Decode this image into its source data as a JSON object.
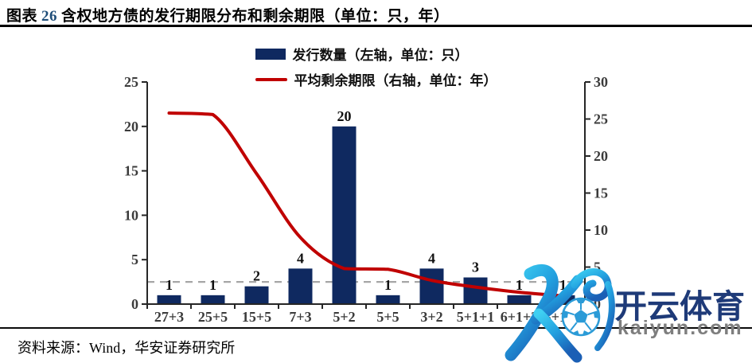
{
  "header": {
    "fig_label": "图表",
    "fig_number": "26",
    "title": "含权地方债的发行期限分布和剩余期限（单位：只，年）"
  },
  "legend": {
    "bar_label": "发行数量（左轴，单位：只）",
    "line_label": "平均剩余期限（右轴，单位：年）"
  },
  "source": {
    "text": "资料来源：Wind，华安证券研究所"
  },
  "watermark": {
    "brand": "开云体育",
    "domain": "kaiyun.com"
  },
  "colors": {
    "bar": "#0F2960",
    "line": "#C00000",
    "reference": "#A6A6A6",
    "axis": "#262626",
    "tick_text": "#3B3B3B",
    "bar_label_text": "#111111",
    "fig_number_accent": "#1F4E79"
  },
  "chart_data": {
    "type": "bar",
    "categories": [
      "27+3",
      "25+5",
      "15+5",
      "7+3",
      "5+2",
      "5+5",
      "3+2",
      "5+1+1",
      "6+1+3",
      "3+1+1"
    ],
    "series": [
      {
        "name": "发行数量（左轴，单位：只）",
        "type": "bar",
        "axis": "left",
        "values": [
          1,
          1,
          2,
          4,
          20,
          1,
          4,
          3,
          1,
          1
        ],
        "color": "#0F2960",
        "data_labels": true
      },
      {
        "name": "平均剩余期限（右轴，单位：年）",
        "type": "line",
        "axis": "right",
        "values": [
          25.8,
          25.6,
          17.6,
          9.0,
          4.8,
          4.7,
          3.2,
          2.3,
          1.6,
          1.1
        ],
        "color": "#C00000"
      }
    ],
    "reference_line": {
      "axis": "left",
      "value": 2.5,
      "style": "dashed",
      "color": "#A6A6A6"
    },
    "left_axis": {
      "min": 0,
      "max": 25,
      "ticks": [
        0,
        5,
        10,
        15,
        20,
        25
      ]
    },
    "right_axis": {
      "min": 0,
      "max": 30,
      "ticks": [
        0,
        5,
        10,
        15,
        20,
        25,
        30
      ]
    },
    "grid": false,
    "legend_position": "top-center",
    "title": "含权地方债的发行期限分布和剩余期限（单位：只，年）"
  }
}
